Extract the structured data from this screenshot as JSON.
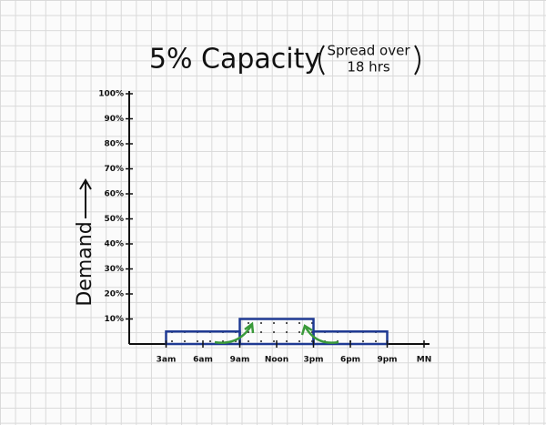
{
  "chart_data": {
    "type": "histogram",
    "title": "5% Capacity",
    "subtitle": [
      "Spread over",
      "18 hrs"
    ],
    "y_label": "Demand",
    "bins": [
      3,
      9,
      15,
      21
    ],
    "values": [
      5,
      10,
      5
    ],
    "color": "#1f3a93",
    "xlim": [
      0,
      24
    ],
    "xticks": [
      {
        "value": 3,
        "label": "3am"
      },
      {
        "value": 6,
        "label": "6am"
      },
      {
        "value": 9,
        "label": "9am"
      },
      {
        "value": 12,
        "label": "Noon"
      },
      {
        "value": 15,
        "label": "3pm"
      },
      {
        "value": 18,
        "label": "6pm"
      },
      {
        "value": 21,
        "label": "9pm"
      },
      {
        "value": 24,
        "label": "MN"
      }
    ],
    "ylim": [
      0,
      100
    ],
    "yticks": [
      {
        "value": 10,
        "label": "10%"
      },
      {
        "value": 20,
        "label": "20%"
      },
      {
        "value": 30,
        "label": "30%"
      },
      {
        "value": 40,
        "label": "40%"
      },
      {
        "value": 50,
        "label": "50%"
      },
      {
        "value": 60,
        "label": "60%"
      },
      {
        "value": 70,
        "label": "70%"
      },
      {
        "value": 80,
        "label": "80%"
      },
      {
        "value": 90,
        "label": "90%"
      },
      {
        "value": 100,
        "label": "100%"
      }
    ]
  }
}
